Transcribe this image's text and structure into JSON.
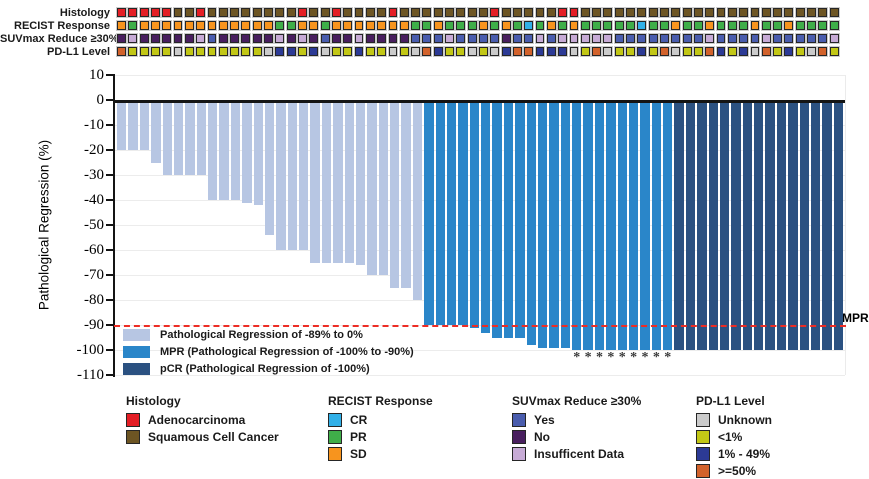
{
  "annotation_tracks": {
    "rows": [
      {
        "id": "histology",
        "label": "Histology",
        "categories": {
          "A": {
            "label": "Adenocarcinoma",
            "color": "#e41e25"
          },
          "S": {
            "label": "Squamous Cell Cancer",
            "color": "#6d5523"
          }
        },
        "values": "AAAAASSASSSSSSSSASSASSSSASSSSSSSSASSSSSAASSSSSSSSSSSSSSSSSSSSSSS"
      },
      {
        "id": "recist",
        "label": "RECIST Response",
        "categories": {
          "C": {
            "label": "CR",
            "color": "#31b0e8"
          },
          "P": {
            "label": "PR",
            "color": "#3fae49"
          },
          "D": {
            "label": "SD",
            "color": "#f7941e"
          }
        },
        "values": "DPDDDDDDDDDDDDPPDDPDDDDDDDPPDPPPDPDPCPDPDPPPPPCPPDPPDPPPDPPDPPPP"
      },
      {
        "id": "suvmax",
        "label": "SUVmax Reduce ≥30%",
        "categories": {
          "Y": {
            "label": "Yes",
            "color": "#4a5dae"
          },
          "N": {
            "label": "No",
            "color": "#491f5f"
          },
          "I": {
            "label": "Insufficent Data",
            "color": "#c7abd6"
          }
        },
        "values": "NINNNNNIYNNNNNININYNNINNNNYYYIYYYYNYYIYIIIIIYYYYYYYYIYYYYIYYYYYI"
      },
      {
        "id": "pdl1",
        "label": "PD-L1 Level",
        "categories": {
          "U": {
            "label": "Unknown",
            "color": "#cbcbcb"
          },
          "L": {
            "label": "<1%",
            "color": "#c2c716"
          },
          "M": {
            "label": "1% - 49%",
            "color": "#2c3a95"
          },
          "H": {
            "label": ">=50%",
            "color": "#d2622b"
          }
        },
        "values": "HLLLLULLLLLLLUMMLMULLMLLULUHMLLULUMHHMMMULHULLMLHULLHMLMUHLMLUHL"
      }
    ]
  },
  "chart_data": {
    "type": "bar",
    "ylabel": "Pathological Regression (%)",
    "ylim": [
      -110,
      10
    ],
    "yticks": [
      10,
      0,
      -10,
      -20,
      -30,
      -40,
      -50,
      -60,
      -70,
      -80,
      -90,
      -100,
      -110
    ],
    "grid": true,
    "values": [
      -20,
      -20,
      -20,
      -25,
      -30,
      -30,
      -30,
      -30,
      -40,
      -40,
      -40,
      -41,
      -42,
      -54,
      -60,
      -60,
      -60,
      -65,
      -65,
      -65,
      -65,
      -66,
      -70,
      -70,
      -75,
      -75,
      -80,
      -90,
      -90,
      -90,
      -90,
      -91,
      -93,
      -95,
      -95,
      -95,
      -98,
      -99,
      -99,
      -99,
      -100,
      -100,
      -100,
      -100,
      -100,
      -100,
      -100,
      -100,
      -100,
      -100,
      -100,
      -100,
      -100,
      -100,
      -100,
      -100,
      -100,
      -100,
      -100,
      -100,
      -100,
      -100,
      -100,
      -100
    ],
    "bar_classes": "LLLLLLLLLLLLLLLLLLLLLLLLLLLMMMMMMMMMMMMMMMMMMMMMMPPPPPPPPPPPPPPP",
    "class_colors": {
      "L": "#b7c6e3",
      "M": "#2a86c9",
      "P": "#2b5181"
    },
    "asterisk_indices": [
      40,
      41,
      42,
      43,
      44,
      45,
      46,
      47,
      48
    ],
    "asterisk_glyph": "*",
    "threshold_line": {
      "value": -90,
      "label": "MPR",
      "style": "dashed",
      "color": "#ed2c24"
    },
    "legend": [
      {
        "class_code": "L",
        "label": "Pathological Regression of -89% to 0%"
      },
      {
        "class_code": "M",
        "label": "MPR (Pathological Regression of -100% to -90%)"
      },
      {
        "class_code": "P",
        "label": "pCR (Pathological Regression of -100%)"
      }
    ],
    "legend_position": "bottom-left-inside"
  },
  "bottom_legends": [
    {
      "title": "Histology",
      "items": [
        {
          "label": "Adenocarcinoma",
          "color": "#e41e25"
        },
        {
          "label": "Squamous Cell Cancer",
          "color": "#6d5523"
        }
      ]
    },
    {
      "title": "RECIST Response",
      "items": [
        {
          "label": "CR",
          "color": "#31b0e8"
        },
        {
          "label": "PR",
          "color": "#3fae49"
        },
        {
          "label": "SD",
          "color": "#f7941e"
        }
      ]
    },
    {
      "title": "SUVmax Reduce ≥30%",
      "items": [
        {
          "label": "Yes",
          "color": "#4a5dae"
        },
        {
          "label": "No",
          "color": "#491f5f"
        },
        {
          "label": "Insufficent Data",
          "color": "#c7abd6"
        }
      ]
    },
    {
      "title": "PD-L1 Level",
      "items": [
        {
          "label": "Unknown",
          "color": "#cbcbcb"
        },
        {
          "label": "<1%",
          "color": "#c2c716"
        },
        {
          "label": "1% - 49%",
          "color": "#2c3a95"
        },
        {
          "label": ">=50%",
          "color": "#d2622b"
        }
      ]
    }
  ]
}
